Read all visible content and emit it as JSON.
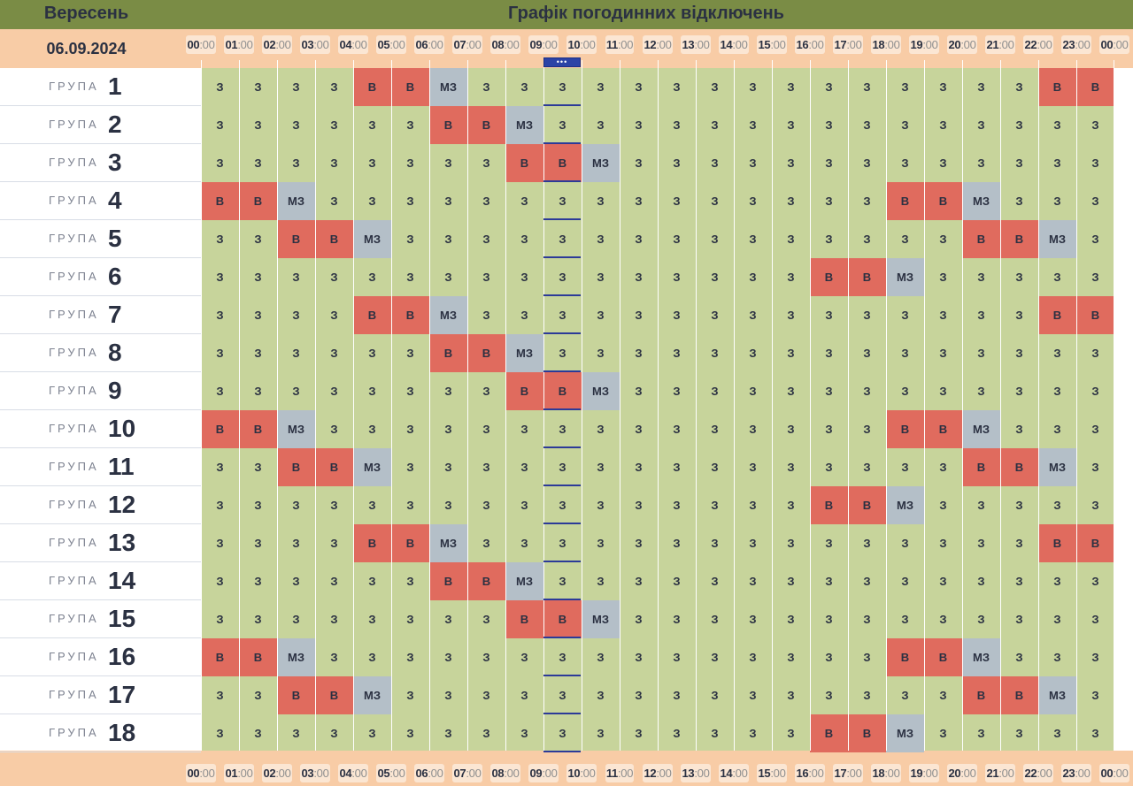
{
  "header": {
    "month": "Вересень",
    "title": "Графік погодинних відключень",
    "date": "06.09.2024"
  },
  "time_labels": [
    {
      "h": "00",
      "m": ":00"
    },
    {
      "h": "01",
      "m": ":00"
    },
    {
      "h": "02",
      "m": ":00"
    },
    {
      "h": "03",
      "m": ":00"
    },
    {
      "h": "04",
      "m": ":00"
    },
    {
      "h": "05",
      "m": ":00"
    },
    {
      "h": "06",
      "m": ":00"
    },
    {
      "h": "07",
      "m": ":00"
    },
    {
      "h": "08",
      "m": ":00"
    },
    {
      "h": "09",
      "m": ":00"
    },
    {
      "h": "10",
      "m": ":00"
    },
    {
      "h": "11",
      "m": ":00"
    },
    {
      "h": "12",
      "m": ":00"
    },
    {
      "h": "13",
      "m": ":00"
    },
    {
      "h": "14",
      "m": ":00"
    },
    {
      "h": "15",
      "m": ":00"
    },
    {
      "h": "16",
      "m": ":00"
    },
    {
      "h": "17",
      "m": ":00"
    },
    {
      "h": "18",
      "m": ":00"
    },
    {
      "h": "19",
      "m": ":00"
    },
    {
      "h": "20",
      "m": ":00"
    },
    {
      "h": "21",
      "m": ":00"
    },
    {
      "h": "22",
      "m": ":00"
    },
    {
      "h": "23",
      "m": ":00"
    },
    {
      "h": "00",
      "m": ":00"
    }
  ],
  "group_word": "ГРУПА",
  "current_marker": "•••",
  "groups": [
    {
      "number": "1",
      "cells": [
        "З",
        "З",
        "З",
        "З",
        "В",
        "В",
        "МЗ",
        "З",
        "З",
        "З",
        "З",
        "З",
        "З",
        "З",
        "З",
        "З",
        "З",
        "З",
        "З",
        "З",
        "З",
        "З",
        "В",
        "В"
      ]
    },
    {
      "number": "2",
      "cells": [
        "З",
        "З",
        "З",
        "З",
        "З",
        "З",
        "В",
        "В",
        "МЗ",
        "З",
        "З",
        "З",
        "З",
        "З",
        "З",
        "З",
        "З",
        "З",
        "З",
        "З",
        "З",
        "З",
        "З",
        "З"
      ]
    },
    {
      "number": "3",
      "cells": [
        "З",
        "З",
        "З",
        "З",
        "З",
        "З",
        "З",
        "З",
        "В",
        "В",
        "МЗ",
        "З",
        "З",
        "З",
        "З",
        "З",
        "З",
        "З",
        "З",
        "З",
        "З",
        "З",
        "З",
        "З"
      ]
    },
    {
      "number": "4",
      "cells": [
        "В",
        "В",
        "МЗ",
        "З",
        "З",
        "З",
        "З",
        "З",
        "З",
        "З",
        "З",
        "З",
        "З",
        "З",
        "З",
        "З",
        "З",
        "З",
        "В",
        "В",
        "МЗ",
        "З",
        "З",
        "З"
      ]
    },
    {
      "number": "5",
      "cells": [
        "З",
        "З",
        "В",
        "В",
        "МЗ",
        "З",
        "З",
        "З",
        "З",
        "З",
        "З",
        "З",
        "З",
        "З",
        "З",
        "З",
        "З",
        "З",
        "З",
        "З",
        "В",
        "В",
        "МЗ",
        "З"
      ]
    },
    {
      "number": "6",
      "cells": [
        "З",
        "З",
        "З",
        "З",
        "З",
        "З",
        "З",
        "З",
        "З",
        "З",
        "З",
        "З",
        "З",
        "З",
        "З",
        "З",
        "В",
        "В",
        "МЗ",
        "З",
        "З",
        "З",
        "З",
        "З"
      ]
    },
    {
      "number": "7",
      "cells": [
        "З",
        "З",
        "З",
        "З",
        "В",
        "В",
        "МЗ",
        "З",
        "З",
        "З",
        "З",
        "З",
        "З",
        "З",
        "З",
        "З",
        "З",
        "З",
        "З",
        "З",
        "З",
        "З",
        "В",
        "В"
      ]
    },
    {
      "number": "8",
      "cells": [
        "З",
        "З",
        "З",
        "З",
        "З",
        "З",
        "В",
        "В",
        "МЗ",
        "З",
        "З",
        "З",
        "З",
        "З",
        "З",
        "З",
        "З",
        "З",
        "З",
        "З",
        "З",
        "З",
        "З",
        "З"
      ]
    },
    {
      "number": "9",
      "cells": [
        "З",
        "З",
        "З",
        "З",
        "З",
        "З",
        "З",
        "З",
        "В",
        "В",
        "МЗ",
        "З",
        "З",
        "З",
        "З",
        "З",
        "З",
        "З",
        "З",
        "З",
        "З",
        "З",
        "З",
        "З"
      ]
    },
    {
      "number": "10",
      "cells": [
        "В",
        "В",
        "МЗ",
        "З",
        "З",
        "З",
        "З",
        "З",
        "З",
        "З",
        "З",
        "З",
        "З",
        "З",
        "З",
        "З",
        "З",
        "З",
        "В",
        "В",
        "МЗ",
        "З",
        "З",
        "З"
      ]
    },
    {
      "number": "11",
      "cells": [
        "З",
        "З",
        "В",
        "В",
        "МЗ",
        "З",
        "З",
        "З",
        "З",
        "З",
        "З",
        "З",
        "З",
        "З",
        "З",
        "З",
        "З",
        "З",
        "З",
        "З",
        "В",
        "В",
        "МЗ",
        "З"
      ]
    },
    {
      "number": "12",
      "cells": [
        "З",
        "З",
        "З",
        "З",
        "З",
        "З",
        "З",
        "З",
        "З",
        "З",
        "З",
        "З",
        "З",
        "З",
        "З",
        "З",
        "В",
        "В",
        "МЗ",
        "З",
        "З",
        "З",
        "З",
        "З"
      ]
    },
    {
      "number": "13",
      "cells": [
        "З",
        "З",
        "З",
        "З",
        "В",
        "В",
        "МЗ",
        "З",
        "З",
        "З",
        "З",
        "З",
        "З",
        "З",
        "З",
        "З",
        "З",
        "З",
        "З",
        "З",
        "З",
        "З",
        "В",
        "В"
      ]
    },
    {
      "number": "14",
      "cells": [
        "З",
        "З",
        "З",
        "З",
        "З",
        "З",
        "В",
        "В",
        "МЗ",
        "З",
        "З",
        "З",
        "З",
        "З",
        "З",
        "З",
        "З",
        "З",
        "З",
        "З",
        "З",
        "З",
        "З",
        "З"
      ]
    },
    {
      "number": "15",
      "cells": [
        "З",
        "З",
        "З",
        "З",
        "З",
        "З",
        "З",
        "З",
        "В",
        "В",
        "МЗ",
        "З",
        "З",
        "З",
        "З",
        "З",
        "З",
        "З",
        "З",
        "З",
        "З",
        "З",
        "З",
        "З"
      ]
    },
    {
      "number": "16",
      "cells": [
        "В",
        "В",
        "МЗ",
        "З",
        "З",
        "З",
        "З",
        "З",
        "З",
        "З",
        "З",
        "З",
        "З",
        "З",
        "З",
        "З",
        "З",
        "З",
        "В",
        "В",
        "МЗ",
        "З",
        "З",
        "З"
      ]
    },
    {
      "number": "17",
      "cells": [
        "З",
        "З",
        "В",
        "В",
        "МЗ",
        "З",
        "З",
        "З",
        "З",
        "З",
        "З",
        "З",
        "З",
        "З",
        "З",
        "З",
        "З",
        "З",
        "З",
        "З",
        "В",
        "В",
        "МЗ",
        "З"
      ]
    },
    {
      "number": "18",
      "cells": [
        "З",
        "З",
        "З",
        "З",
        "З",
        "З",
        "З",
        "З",
        "З",
        "З",
        "З",
        "З",
        "З",
        "З",
        "З",
        "З",
        "В",
        "В",
        "МЗ",
        "З",
        "З",
        "З",
        "З",
        "З"
      ]
    }
  ],
  "colors": {
    "header_bg": "#7a8c45",
    "timebar_bg": "#f8cca6",
    "on": "#c7d49b",
    "off": "#e06b5e",
    "maybe": "#b4bfc8",
    "now_marker": "#2c43a6"
  }
}
